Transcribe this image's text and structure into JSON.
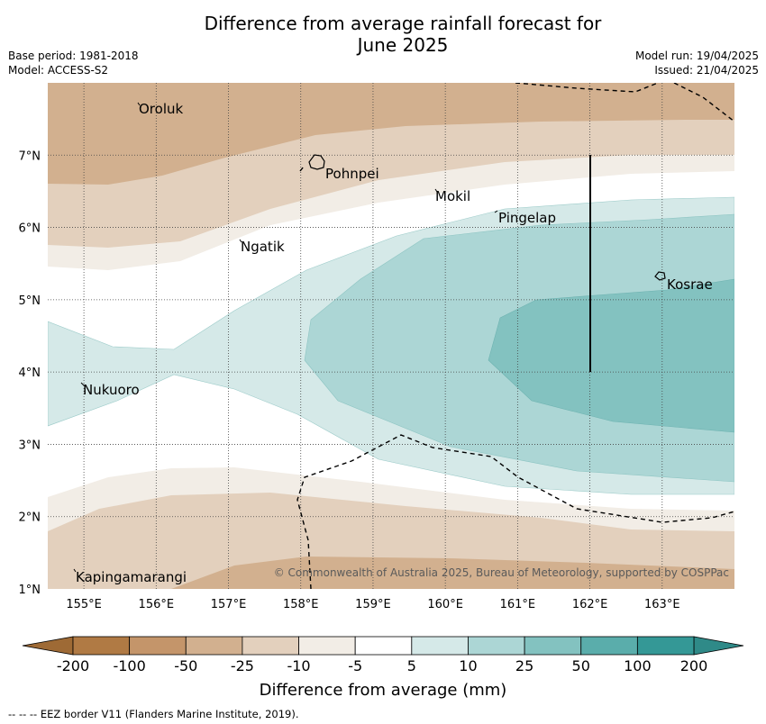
{
  "title_line1": "Difference from average rainfall forecast for",
  "title_line2": "June 2025",
  "base_period": "Base period: 1981-2018",
  "model": "Model: ACCESS-S2",
  "model_run": "Model run: 19/04/2025",
  "issued": "Issued: 21/04/2025",
  "copyright": "© Commonwealth of Australia 2025, Bureau of Meteorology, supported by COSPPac",
  "footnote": "--  --  -- EEZ border V11 (Flanders Marine Institute, 2019).",
  "map": {
    "lon_range": [
      154.5,
      164.0
    ],
    "lat_range": [
      1.0,
      8.0
    ],
    "lon_ticks": [
      "155°E",
      "156°E",
      "157°E",
      "158°E",
      "159°E",
      "160°E",
      "161°E",
      "162°E",
      "163°E"
    ],
    "lat_ticks": [
      "1°N",
      "2°N",
      "3°N",
      "4°N",
      "5°N",
      "6°N",
      "7°N"
    ],
    "places": [
      {
        "name": "Oroluk",
        "lon": 155.8,
        "lat": 7.6
      },
      {
        "name": "Pohnpei",
        "lon": 158.2,
        "lat": 6.9
      },
      {
        "name": "Mokil",
        "lon": 159.9,
        "lat": 6.7
      },
      {
        "name": "Pingelap",
        "lon": 160.7,
        "lat": 6.2
      },
      {
        "name": "Ngatik",
        "lon": 157.1,
        "lat": 5.8
      },
      {
        "name": "Kosrae",
        "lon": 163.0,
        "lat": 5.3
      },
      {
        "name": "Nukuoro",
        "lon": 154.8,
        "lat": 3.8
      },
      {
        "name": "Kapingamarangi",
        "lon": 154.8,
        "lat": 1.1
      }
    ],
    "gridlines": true
  },
  "colorbar": {
    "title": "Difference from average (mm)",
    "labels": [
      "-200",
      "-100",
      "-50",
      "-25",
      "-10",
      "-5",
      "5",
      "10",
      "25",
      "50",
      "100",
      "200"
    ],
    "colors": [
      "#b07a44",
      "#c4956a",
      "#d2b08f",
      "#e3d0bd",
      "#f2ede6",
      "#ffffff",
      "#d5e9e8",
      "#acd6d5",
      "#83c2c0",
      "#5aadab",
      "#349896"
    ],
    "extend_low_color": "#9e6a35",
    "extend_high_color": "#2f8a88"
  }
}
